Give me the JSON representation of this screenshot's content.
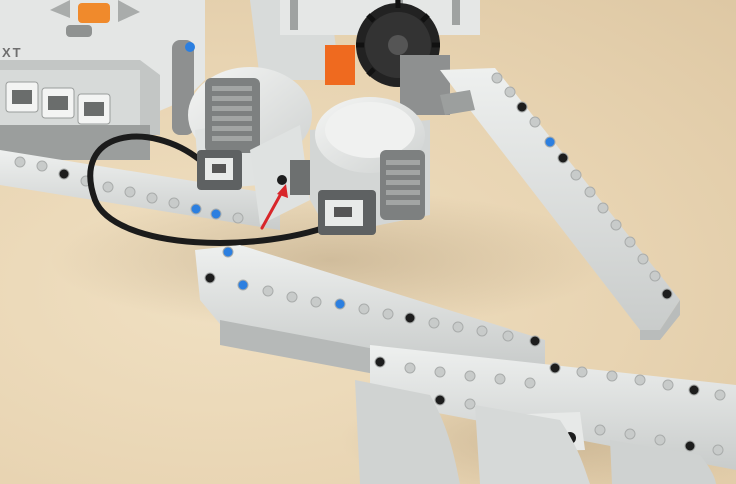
{
  "photo": {
    "brick_label": "XT",
    "colors": {
      "background": "#ead8b8",
      "beam_light": "#e3e5e4",
      "beam_dark": "#b9bcbb",
      "gray_part": "#8e9090",
      "dark_gray": "#5e6162",
      "pin_blue": "#2c7fe0",
      "pin_black": "#1d1d1d",
      "button_orange": "#f08a2c",
      "cable": "#1b1b1b",
      "gear_black": "#222222",
      "accent_orange": "#ef6a1f",
      "arrow_red": "#d8262a"
    }
  }
}
